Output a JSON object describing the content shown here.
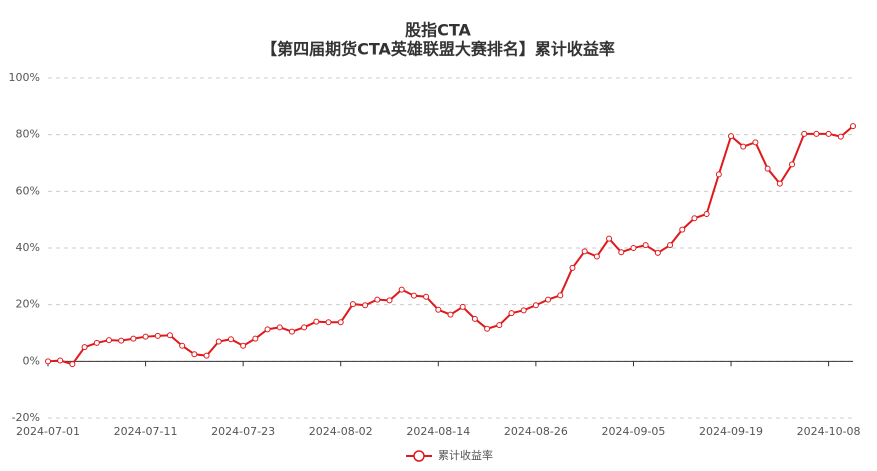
{
  "chart_data": {
    "type": "line",
    "title": "股指CTA",
    "subtitle": "【第四届期货CTA英雄联盟大赛排名】累计收益率",
    "categories": [
      "2024-07-01",
      null,
      null,
      null,
      null,
      null,
      null,
      null,
      "2024-07-11",
      null,
      null,
      null,
      null,
      null,
      null,
      null,
      "2024-07-23",
      null,
      null,
      null,
      null,
      null,
      null,
      null,
      "2024-08-02",
      null,
      null,
      null,
      null,
      null,
      null,
      null,
      "2024-08-14",
      null,
      null,
      null,
      null,
      null,
      null,
      null,
      "2024-08-26",
      null,
      null,
      null,
      null,
      null,
      null,
      null,
      "2024-09-05",
      null,
      null,
      null,
      null,
      null,
      null,
      null,
      "2024-09-19",
      null,
      null,
      null,
      null,
      null,
      null,
      null,
      "2024-10-08",
      null,
      null
    ],
    "series": [
      {
        "name": "累计收益率",
        "color": "#e0191b",
        "values": [
          0,
          0.3,
          -1,
          5,
          6.5,
          7.5,
          7.3,
          8,
          8.7,
          9,
          9.2,
          5.5,
          2.5,
          2,
          7,
          7.8,
          5.5,
          8,
          11.3,
          12,
          10.5,
          12,
          14,
          13.8,
          13.8,
          20.2,
          19.8,
          21.8,
          21.5,
          25.3,
          23.2,
          22.8,
          18.2,
          16.5,
          19.2,
          15,
          11.5,
          12.8,
          17,
          18,
          19.8,
          21.8,
          23.3,
          33,
          38.8,
          37,
          43.3,
          38.5,
          40,
          41,
          38.3,
          41,
          46.5,
          50.5,
          52,
          66,
          79.5,
          75.8,
          77.3,
          68,
          62.7,
          69.5,
          80.3,
          80.3,
          80.3,
          79.3,
          83
        ]
      }
    ],
    "ylim": [
      -20,
      100
    ],
    "yticks": [
      {
        "value": -20,
        "label": "-20%"
      },
      {
        "value": 0,
        "label": "0%"
      },
      {
        "value": 20,
        "label": "20%"
      },
      {
        "value": 40,
        "label": "40%"
      },
      {
        "value": 60,
        "label": "60%"
      },
      {
        "value": 80,
        "label": "80%"
      },
      {
        "value": 100,
        "label": "100%"
      }
    ],
    "grid": true
  }
}
